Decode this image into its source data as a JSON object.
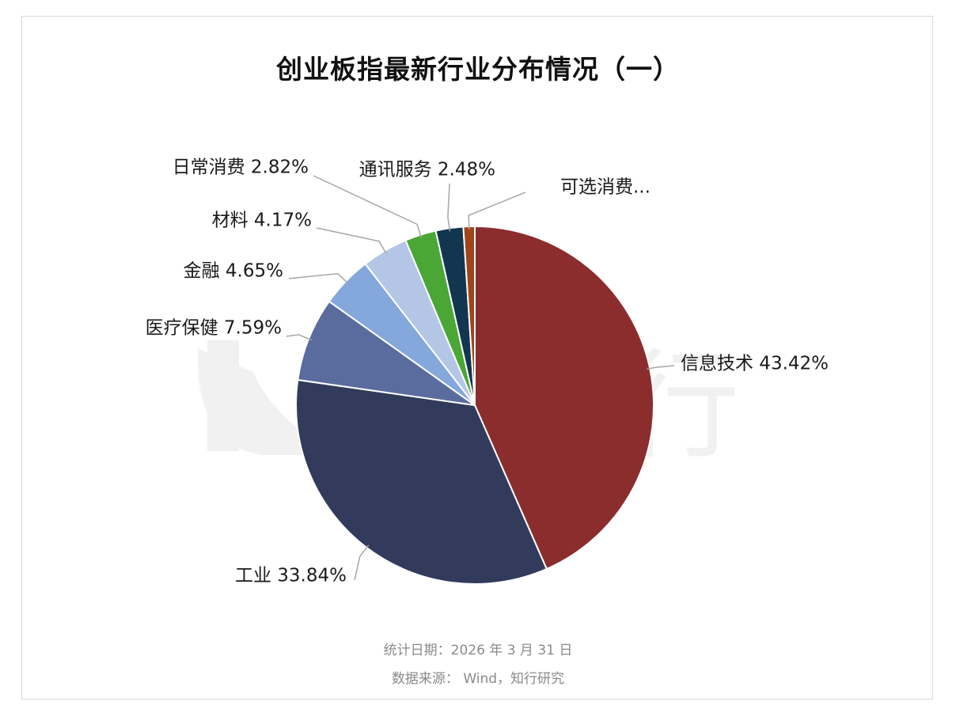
{
  "title": "创业板指最新行业分布情况（一）",
  "chart_data": {
    "type": "pie",
    "title": "创业板指最新行业分布情况（一）",
    "slices": [
      {
        "name": "信息技术",
        "value": 43.42,
        "label": "信息技术 43.42%",
        "color": "#8b2d2d"
      },
      {
        "name": "工业",
        "value": 33.84,
        "label": "工业 33.84%",
        "color": "#323b5c"
      },
      {
        "name": "医疗保健",
        "value": 7.59,
        "label": "医疗保健 7.59%",
        "color": "#5a6b9e"
      },
      {
        "name": "金融",
        "value": 4.65,
        "label": "金融 4.65%",
        "color": "#84a7dc"
      },
      {
        "name": "材料",
        "value": 4.17,
        "label": "材料 4.17%",
        "color": "#b3c6e6"
      },
      {
        "name": "日常消费",
        "value": 2.82,
        "label": "日常消费 2.82%",
        "color": "#4aa635"
      },
      {
        "name": "通讯服务",
        "value": 2.48,
        "label": "通讯服务 2.48%",
        "color": "#123650"
      },
      {
        "name": "可选消费",
        "value": 1.03,
        "label": "可选消费...",
        "color": "#a0441a"
      }
    ],
    "legend": "none",
    "labels": "outside-with-leader-lines"
  },
  "footer": {
    "date": "统计日期：2026 年 3 月 31 日",
    "source": "数据来源： Wind，知行研究"
  },
  "watermark": "知行"
}
